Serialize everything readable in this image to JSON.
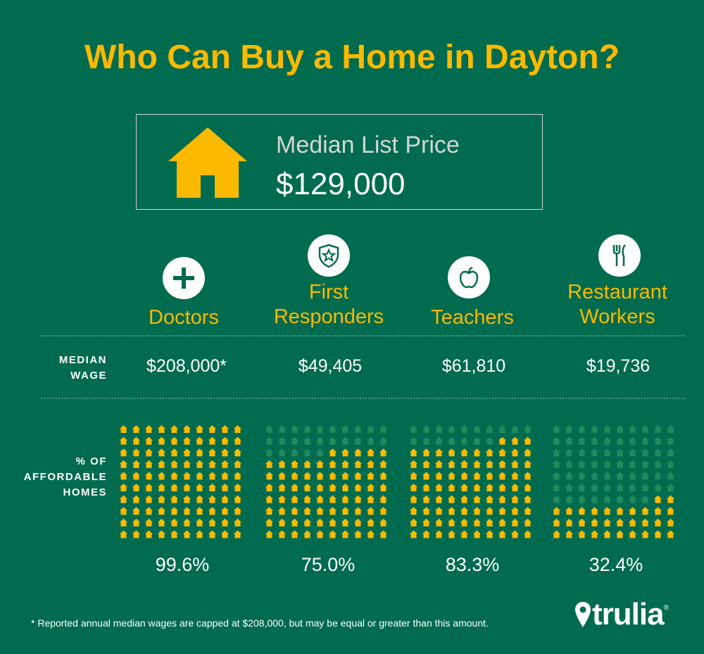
{
  "title": "Who Can Buy a Home in Dayton?",
  "price": {
    "label": "Median List Price",
    "value": "$129,000"
  },
  "rows": {
    "wage_label_1": "MEDIAN",
    "wage_label_2": "WAGE",
    "afford_label_1": "% OF",
    "afford_label_2": "AFFORDABLE",
    "afford_label_3": "HOMES"
  },
  "columns": [
    {
      "icon": "plus-icon",
      "label_1": "",
      "label_2": "Doctors",
      "wage": "$208,000*",
      "pct": "99.6%",
      "affordable_fraction": 0.996
    },
    {
      "icon": "shield-star-icon",
      "label_1": "First",
      "label_2": "Responders",
      "wage": "$49,405",
      "pct": "75.0%",
      "affordable_fraction": 0.75
    },
    {
      "icon": "apple-icon",
      "label_1": "",
      "label_2": "Teachers",
      "wage": "$61,810",
      "pct": "83.3%",
      "affordable_fraction": 0.833
    },
    {
      "icon": "fork-knife-icon",
      "label_1": "Restaurant",
      "label_2": "Workers",
      "wage": "$19,736",
      "pct": "32.4%",
      "affordable_fraction": 0.324
    }
  ],
  "footnote": "* Reported annual median wages are capped at $208,000, but may be equal or greater than this amount.",
  "logo": {
    "text": "trulia",
    "reg": "®"
  },
  "colors": {
    "background": "#006b4f",
    "accent": "#fbb900",
    "house_dim": "#1f8a5e"
  }
}
